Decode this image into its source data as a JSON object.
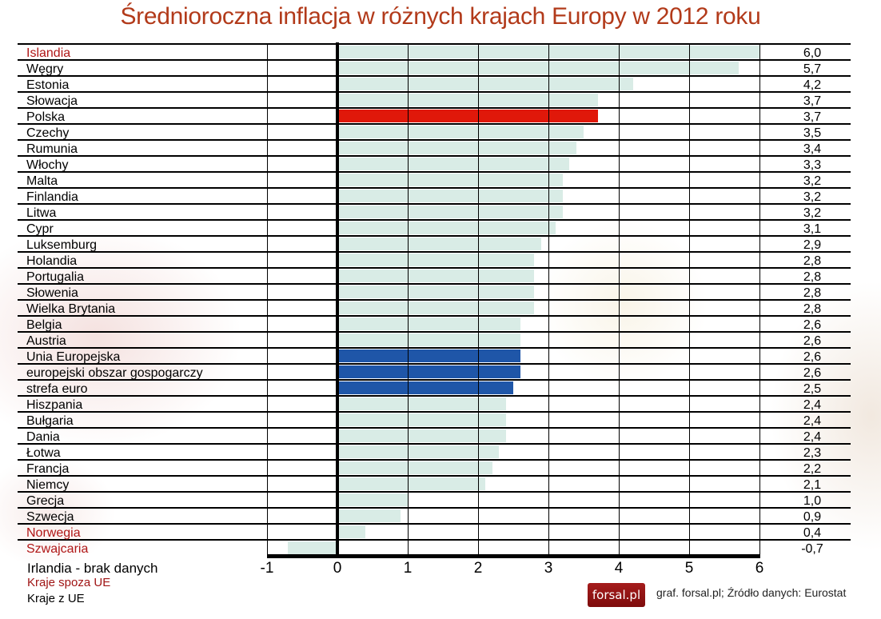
{
  "title": "Średnioroczna inflacja w różnych krajach Europy w 2012 roku",
  "colors": {
    "title": "#b23a1a",
    "bar_default": "#d9ece6",
    "bar_poland": "#e0180a",
    "bar_aggregate": "#1f56a8",
    "label_non_eu": "#b01616",
    "label_eu": "#000000"
  },
  "chart_data": {
    "type": "bar",
    "orientation": "horizontal",
    "title": "Średnioroczna inflacja w różnych krajach Europy w 2012 roku",
    "xlabel": "",
    "ylabel": "",
    "xlim": [
      -1,
      6
    ],
    "x_ticks": [
      "-1",
      "0",
      "1",
      "2",
      "3",
      "4",
      "5",
      "6"
    ],
    "grid": true,
    "categories": [
      "Islandia",
      "Węgry",
      "Estonia",
      "Słowacja",
      "Polska",
      "Czechy",
      "Rumunia",
      "Włochy",
      "Malta",
      "Finlandia",
      "Litwa",
      "Cypr",
      "Luksemburg",
      "Holandia",
      "Portugalia",
      "Słowenia",
      "Wielka Brytania",
      "Belgia",
      "Austria",
      "Unia Europejska",
      "europejski obszar gospogarczy",
      "strefa euro",
      "Hiszpania",
      "Bułgaria",
      "Dania",
      "Łotwa",
      "Francja",
      "Niemcy",
      "Grecja",
      "Szwecja",
      "Norwegia",
      "Szwajcaria"
    ],
    "values": [
      6.0,
      5.7,
      4.2,
      3.7,
      3.7,
      3.5,
      3.4,
      3.3,
      3.2,
      3.2,
      3.2,
      3.1,
      2.9,
      2.8,
      2.8,
      2.8,
      2.8,
      2.6,
      2.6,
      2.6,
      2.6,
      2.5,
      2.4,
      2.4,
      2.4,
      2.3,
      2.2,
      2.1,
      1.0,
      0.9,
      0.4,
      -0.7
    ],
    "value_labels": [
      "6,0",
      "5,7",
      "4,2",
      "3,7",
      "3,7",
      "3,5",
      "3,4",
      "3,3",
      "3,2",
      "3,2",
      "3,2",
      "3,1",
      "2,9",
      "2,8",
      "2,8",
      "2,8",
      "2,8",
      "2,6",
      "2,6",
      "2,6",
      "2,6",
      "2,5",
      "2,4",
      "2,4",
      "2,4",
      "2,3",
      "2,2",
      "2,1",
      "1,0",
      "0,9",
      "0,4",
      "-0,7"
    ],
    "non_eu": [
      "Islandia",
      "Norwegia",
      "Szwajcaria"
    ],
    "highlighted": {
      "Polska": "red",
      "Unia Europejska": "blue",
      "europejski obszar gospogarczy": "blue",
      "strefa euro": "blue"
    },
    "notes": [
      "Irlandia - brak danych"
    ],
    "legend": [
      {
        "label": "Kraje spoza UE",
        "color": "#a01515"
      },
      {
        "label": "Kraje z UE",
        "color": "#000000"
      }
    ],
    "source": "graf. forsal.pl; Źródło danych: Eurostat"
  },
  "footer": {
    "note": "Irlandia - brak danych",
    "legend_non_eu": "Kraje spoza UE",
    "legend_eu": "Kraje z UE",
    "logo": "forsal.pl",
    "source": "graf. forsal.pl; Źródło danych: Eurostat"
  }
}
